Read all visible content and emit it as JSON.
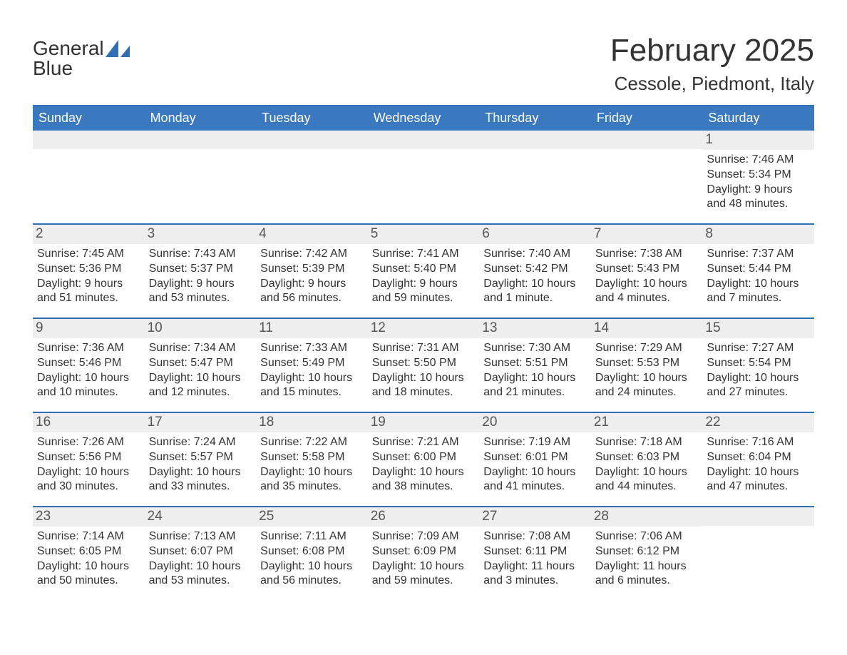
{
  "logo": {
    "text_gray": "General",
    "text_blue": "Blue",
    "mark_color": "#2f6fb6"
  },
  "title": {
    "month_year": "February 2025",
    "location": "Cessole, Piedmont, Italy"
  },
  "colors": {
    "header_bar": "#3a78bf",
    "header_border": "#2f6fb6",
    "day_number_bg": "#eeeeee",
    "text": "#333333",
    "background": "#ffffff"
  },
  "weekdays": [
    "Sunday",
    "Monday",
    "Tuesday",
    "Wednesday",
    "Thursday",
    "Friday",
    "Saturday"
  ],
  "layout": {
    "first_weekday_index": 6,
    "weeks": 5,
    "columns": 7
  },
  "days": [
    {
      "n": 1,
      "sunrise": "Sunrise: 7:46 AM",
      "sunset": "Sunset: 5:34 PM",
      "daylight": "Daylight: 9 hours and 48 minutes."
    },
    {
      "n": 2,
      "sunrise": "Sunrise: 7:45 AM",
      "sunset": "Sunset: 5:36 PM",
      "daylight": "Daylight: 9 hours and 51 minutes."
    },
    {
      "n": 3,
      "sunrise": "Sunrise: 7:43 AM",
      "sunset": "Sunset: 5:37 PM",
      "daylight": "Daylight: 9 hours and 53 minutes."
    },
    {
      "n": 4,
      "sunrise": "Sunrise: 7:42 AM",
      "sunset": "Sunset: 5:39 PM",
      "daylight": "Daylight: 9 hours and 56 minutes."
    },
    {
      "n": 5,
      "sunrise": "Sunrise: 7:41 AM",
      "sunset": "Sunset: 5:40 PM",
      "daylight": "Daylight: 9 hours and 59 minutes."
    },
    {
      "n": 6,
      "sunrise": "Sunrise: 7:40 AM",
      "sunset": "Sunset: 5:42 PM",
      "daylight": "Daylight: 10 hours and 1 minute."
    },
    {
      "n": 7,
      "sunrise": "Sunrise: 7:38 AM",
      "sunset": "Sunset: 5:43 PM",
      "daylight": "Daylight: 10 hours and 4 minutes."
    },
    {
      "n": 8,
      "sunrise": "Sunrise: 7:37 AM",
      "sunset": "Sunset: 5:44 PM",
      "daylight": "Daylight: 10 hours and 7 minutes."
    },
    {
      "n": 9,
      "sunrise": "Sunrise: 7:36 AM",
      "sunset": "Sunset: 5:46 PM",
      "daylight": "Daylight: 10 hours and 10 minutes."
    },
    {
      "n": 10,
      "sunrise": "Sunrise: 7:34 AM",
      "sunset": "Sunset: 5:47 PM",
      "daylight": "Daylight: 10 hours and 12 minutes."
    },
    {
      "n": 11,
      "sunrise": "Sunrise: 7:33 AM",
      "sunset": "Sunset: 5:49 PM",
      "daylight": "Daylight: 10 hours and 15 minutes."
    },
    {
      "n": 12,
      "sunrise": "Sunrise: 7:31 AM",
      "sunset": "Sunset: 5:50 PM",
      "daylight": "Daylight: 10 hours and 18 minutes."
    },
    {
      "n": 13,
      "sunrise": "Sunrise: 7:30 AM",
      "sunset": "Sunset: 5:51 PM",
      "daylight": "Daylight: 10 hours and 21 minutes."
    },
    {
      "n": 14,
      "sunrise": "Sunrise: 7:29 AM",
      "sunset": "Sunset: 5:53 PM",
      "daylight": "Daylight: 10 hours and 24 minutes."
    },
    {
      "n": 15,
      "sunrise": "Sunrise: 7:27 AM",
      "sunset": "Sunset: 5:54 PM",
      "daylight": "Daylight: 10 hours and 27 minutes."
    },
    {
      "n": 16,
      "sunrise": "Sunrise: 7:26 AM",
      "sunset": "Sunset: 5:56 PM",
      "daylight": "Daylight: 10 hours and 30 minutes."
    },
    {
      "n": 17,
      "sunrise": "Sunrise: 7:24 AM",
      "sunset": "Sunset: 5:57 PM",
      "daylight": "Daylight: 10 hours and 33 minutes."
    },
    {
      "n": 18,
      "sunrise": "Sunrise: 7:22 AM",
      "sunset": "Sunset: 5:58 PM",
      "daylight": "Daylight: 10 hours and 35 minutes."
    },
    {
      "n": 19,
      "sunrise": "Sunrise: 7:21 AM",
      "sunset": "Sunset: 6:00 PM",
      "daylight": "Daylight: 10 hours and 38 minutes."
    },
    {
      "n": 20,
      "sunrise": "Sunrise: 7:19 AM",
      "sunset": "Sunset: 6:01 PM",
      "daylight": "Daylight: 10 hours and 41 minutes."
    },
    {
      "n": 21,
      "sunrise": "Sunrise: 7:18 AM",
      "sunset": "Sunset: 6:03 PM",
      "daylight": "Daylight: 10 hours and 44 minutes."
    },
    {
      "n": 22,
      "sunrise": "Sunrise: 7:16 AM",
      "sunset": "Sunset: 6:04 PM",
      "daylight": "Daylight: 10 hours and 47 minutes."
    },
    {
      "n": 23,
      "sunrise": "Sunrise: 7:14 AM",
      "sunset": "Sunset: 6:05 PM",
      "daylight": "Daylight: 10 hours and 50 minutes."
    },
    {
      "n": 24,
      "sunrise": "Sunrise: 7:13 AM",
      "sunset": "Sunset: 6:07 PM",
      "daylight": "Daylight: 10 hours and 53 minutes."
    },
    {
      "n": 25,
      "sunrise": "Sunrise: 7:11 AM",
      "sunset": "Sunset: 6:08 PM",
      "daylight": "Daylight: 10 hours and 56 minutes."
    },
    {
      "n": 26,
      "sunrise": "Sunrise: 7:09 AM",
      "sunset": "Sunset: 6:09 PM",
      "daylight": "Daylight: 10 hours and 59 minutes."
    },
    {
      "n": 27,
      "sunrise": "Sunrise: 7:08 AM",
      "sunset": "Sunset: 6:11 PM",
      "daylight": "Daylight: 11 hours and 3 minutes."
    },
    {
      "n": 28,
      "sunrise": "Sunrise: 7:06 AM",
      "sunset": "Sunset: 6:12 PM",
      "daylight": "Daylight: 11 hours and 6 minutes."
    }
  ]
}
